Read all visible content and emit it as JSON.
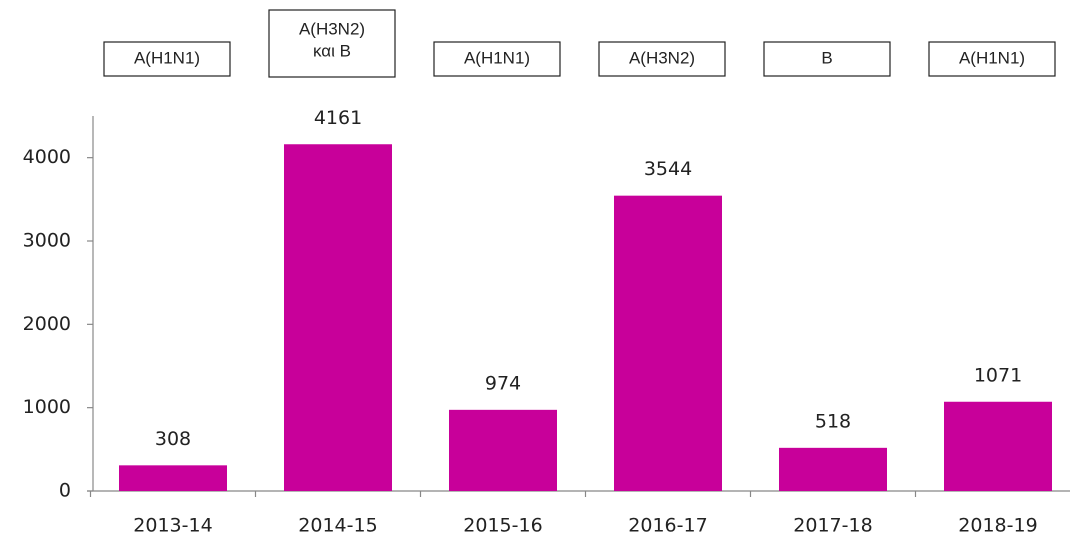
{
  "chart_data": {
    "type": "bar",
    "categories": [
      "2013-14",
      "2014-15",
      "2015-16",
      "2016-17",
      "2017-18",
      "2018-19"
    ],
    "values": [
      308,
      4161,
      974,
      3544,
      518,
      1071
    ],
    "color": "#c8009a",
    "annotations": [
      [
        "A(H1N1)"
      ],
      [
        "A(H3N2)",
        "και B"
      ],
      [
        "A(H1N1)"
      ],
      [
        "A(H3N2)"
      ],
      [
        "B"
      ],
      [
        "A(H1N1)"
      ]
    ],
    "ylim": [
      0,
      4500
    ],
    "yticks": [
      0,
      1000,
      2000,
      3000,
      4000
    ],
    "grid": false
  }
}
